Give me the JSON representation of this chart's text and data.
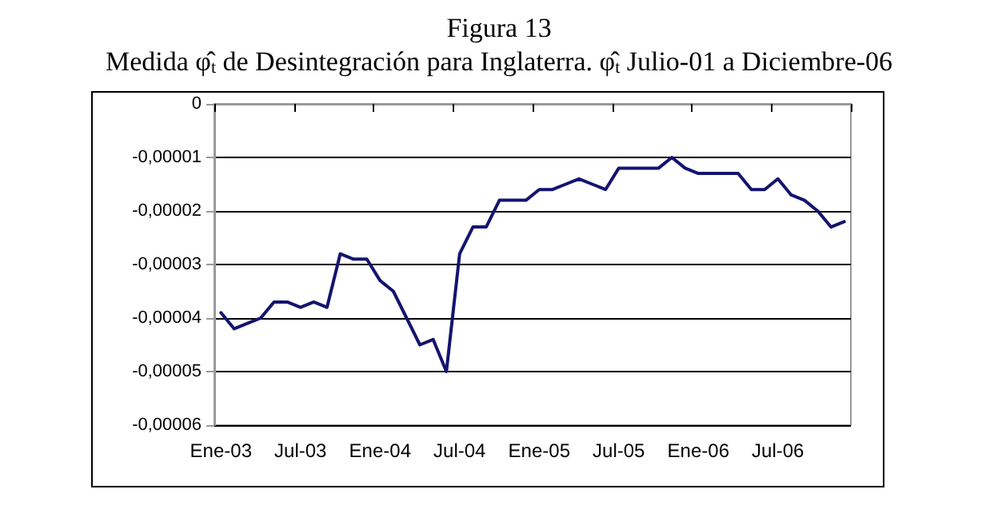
{
  "chart_data": {
    "type": "line",
    "title": "Figura 13",
    "subtitle": "Medida φ̂$_{t}$ de Desintegración para Inglaterra. φ̂$_{t}$ Julio-01 a Diciembre-06",
    "categories": [
      "Ene-03",
      null,
      null,
      null,
      null,
      null,
      "Jul-03",
      null,
      null,
      null,
      null,
      null,
      "Ene-04",
      null,
      null,
      null,
      null,
      null,
      "Jul-04",
      null,
      null,
      null,
      null,
      null,
      "Ene-05",
      null,
      null,
      null,
      null,
      null,
      "Jul-05",
      null,
      null,
      null,
      null,
      null,
      "Ene-06",
      null,
      null,
      null,
      null,
      null,
      "Jul-06",
      null,
      null,
      null,
      null,
      null
    ],
    "series": [
      {
        "color": "#14146e",
        "values": [
          -3.9e-05,
          -4.2e-05,
          -4.1e-05,
          -4e-05,
          -3.7e-05,
          -3.7e-05,
          -3.8e-05,
          -3.7e-05,
          -3.8e-05,
          -2.8e-05,
          -2.9e-05,
          -2.9e-05,
          -3.3e-05,
          -3.5e-05,
          -4e-05,
          -4.5e-05,
          -4.4e-05,
          -5e-05,
          -2.8e-05,
          -2.3e-05,
          -2.3e-05,
          -1.8e-05,
          -1.8e-05,
          -1.8e-05,
          -1.6e-05,
          -1.6e-05,
          -1.5e-05,
          -1.4e-05,
          -1.5e-05,
          -1.6e-05,
          -1.2e-05,
          -1.2e-05,
          -1.2e-05,
          -1.2e-05,
          -1e-05,
          -1.2e-05,
          -1.3e-05,
          -1.3e-05,
          -1.3e-05,
          -1.3e-05,
          -1.6e-05,
          -1.6e-05,
          -1.4e-05,
          -1.7e-05,
          -1.8e-05,
          -2e-05,
          -2.3e-05,
          -2.2e-05
        ]
      }
    ],
    "ylim": [
      -6e-05,
      0
    ],
    "yticks": [
      {
        "value": -6e-05,
        "label": "-0,00006"
      },
      {
        "value": -5e-05,
        "label": "-0,00005"
      },
      {
        "value": -4e-05,
        "label": "-0,00004"
      },
      {
        "value": -3e-05,
        "label": "-0,00003"
      },
      {
        "value": -2e-05,
        "label": "-0,00002"
      },
      {
        "value": -1e-05,
        "label": "-0,00001"
      },
      0
    ],
    "grid": "y",
    "marker": "none",
    "line_style": "solid"
  }
}
